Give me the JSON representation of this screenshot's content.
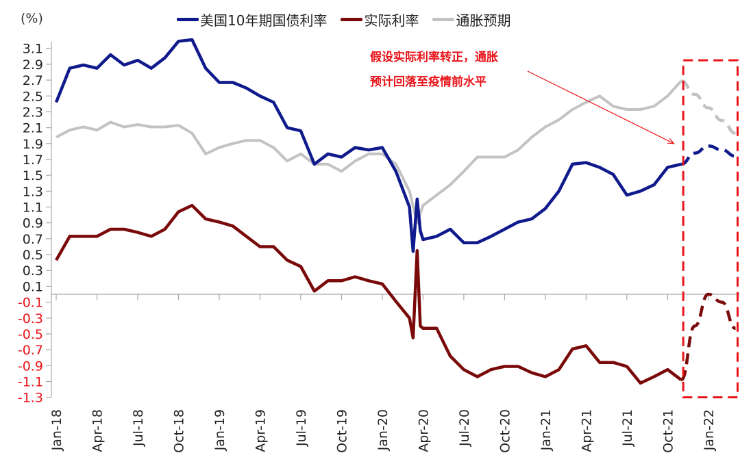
{
  "chart_data": {
    "type": "line",
    "title": "",
    "ylabel": "(%)",
    "xlabel": "",
    "ylim": [
      -1.3,
      3.1
    ],
    "ytick_step": 0.2,
    "xlim": [
      "2018-01",
      "2022-03"
    ],
    "x_tick_labels": [
      "Jan-18",
      "Apr-18",
      "Jul-18",
      "Oct-18",
      "Jan-19",
      "Apr-19",
      "Jul-19",
      "Oct-19",
      "Jan-20",
      "Apr-20",
      "Jul-20",
      "Oct-20",
      "Jan-21",
      "Apr-21",
      "Jul-21",
      "Oct-21",
      "Jan-22"
    ],
    "grid": false,
    "legend": "top",
    "negative_tick_color": "#e8141a",
    "series": [
      {
        "name": "美国10年期国债利率",
        "color": "#0f1a8c",
        "dates": [
          "2018-01-01",
          "2018-02-01",
          "2018-03-01",
          "2018-04-01",
          "2018-05-01",
          "2018-06-01",
          "2018-07-01",
          "2018-08-01",
          "2018-09-01",
          "2018-10-01",
          "2018-11-01",
          "2018-12-01",
          "2019-01-01",
          "2019-02-01",
          "2019-03-01",
          "2019-04-01",
          "2019-05-01",
          "2019-06-01",
          "2019-07-01",
          "2019-08-01",
          "2019-09-01",
          "2019-10-01",
          "2019-11-01",
          "2019-12-01",
          "2020-01-01",
          "2020-02-01",
          "2020-03-01",
          "2020-03-09",
          "2020-03-18",
          "2020-03-25",
          "2020-04-01",
          "2020-05-01",
          "2020-06-01",
          "2020-07-01",
          "2020-08-01",
          "2020-09-01",
          "2020-10-01",
          "2020-11-01",
          "2020-12-01",
          "2021-01-01",
          "2021-02-01",
          "2021-03-01",
          "2021-04-01",
          "2021-05-01",
          "2021-06-01",
          "2021-07-01",
          "2021-08-01",
          "2021-09-01",
          "2021-10-01",
          "2021-11-01"
        ],
        "values": [
          2.42,
          2.85,
          2.89,
          2.85,
          3.02,
          2.89,
          2.95,
          2.85,
          2.98,
          3.19,
          3.21,
          2.85,
          2.67,
          2.67,
          2.6,
          2.5,
          2.42,
          2.1,
          2.06,
          1.64,
          1.77,
          1.73,
          1.85,
          1.82,
          1.85,
          1.55,
          1.1,
          0.54,
          1.2,
          0.8,
          0.69,
          0.73,
          0.82,
          0.65,
          0.65,
          0.73,
          0.82,
          0.91,
          0.95,
          1.08,
          1.3,
          1.64,
          1.66,
          1.6,
          1.51,
          1.25,
          1.3,
          1.38,
          1.6,
          1.64
        ],
        "forecast_dates": [
          "2021-11-01",
          "2021-12-01",
          "2022-01-01",
          "2022-02-01",
          "2022-03-01"
        ],
        "forecast_values": [
          1.64,
          1.78,
          1.87,
          1.82,
          1.74
        ]
      },
      {
        "name": "实际利率",
        "color": "#7a0a0a",
        "dates": [
          "2018-01-01",
          "2018-02-01",
          "2018-03-01",
          "2018-04-01",
          "2018-05-01",
          "2018-06-01",
          "2018-07-01",
          "2018-08-01",
          "2018-09-01",
          "2018-10-01",
          "2018-11-01",
          "2018-12-01",
          "2019-01-01",
          "2019-02-01",
          "2019-03-01",
          "2019-04-01",
          "2019-05-01",
          "2019-06-01",
          "2019-07-01",
          "2019-08-01",
          "2019-09-01",
          "2019-10-01",
          "2019-11-01",
          "2019-12-01",
          "2020-01-01",
          "2020-02-01",
          "2020-03-01",
          "2020-03-09",
          "2020-03-18",
          "2020-03-25",
          "2020-04-01",
          "2020-05-01",
          "2020-06-01",
          "2020-07-01",
          "2020-08-01",
          "2020-09-01",
          "2020-10-01",
          "2020-11-01",
          "2020-12-01",
          "2021-01-01",
          "2021-02-01",
          "2021-03-01",
          "2021-04-01",
          "2021-05-01",
          "2021-06-01",
          "2021-07-01",
          "2021-08-01",
          "2021-09-01",
          "2021-10-01",
          "2021-11-01"
        ],
        "values": [
          0.43,
          0.73,
          0.73,
          0.73,
          0.82,
          0.82,
          0.78,
          0.73,
          0.82,
          1.04,
          1.12,
          0.95,
          0.91,
          0.86,
          0.73,
          0.6,
          0.6,
          0.43,
          0.35,
          0.04,
          0.17,
          0.17,
          0.22,
          0.17,
          0.13,
          -0.09,
          -0.3,
          -0.55,
          0.55,
          -0.4,
          -0.43,
          -0.43,
          -0.78,
          -0.95,
          -1.04,
          -0.95,
          -0.91,
          -0.91,
          -0.99,
          -1.04,
          -0.95,
          -0.69,
          -0.65,
          -0.86,
          -0.86,
          -0.91,
          -1.12,
          -1.04,
          -0.95,
          -1.08
        ],
        "forecast_dates": [
          "2021-11-01",
          "2021-12-01",
          "2022-01-01",
          "2022-02-01",
          "2022-03-01"
        ],
        "forecast_values": [
          -1.08,
          -0.4,
          0.0,
          -0.1,
          -0.43
        ]
      },
      {
        "name": "通胀预期",
        "color": "#c3c3c3",
        "dates": [
          "2018-01-01",
          "2018-02-01",
          "2018-03-01",
          "2018-04-01",
          "2018-05-01",
          "2018-06-01",
          "2018-07-01",
          "2018-08-01",
          "2018-09-01",
          "2018-10-01",
          "2018-11-01",
          "2018-12-01",
          "2019-01-01",
          "2019-02-01",
          "2019-03-01",
          "2019-04-01",
          "2019-05-01",
          "2019-06-01",
          "2019-07-01",
          "2019-08-01",
          "2019-09-01",
          "2019-10-01",
          "2019-11-01",
          "2019-12-01",
          "2020-01-01",
          "2020-02-01",
          "2020-03-01",
          "2020-03-18",
          "2020-04-01",
          "2020-05-01",
          "2020-06-01",
          "2020-07-01",
          "2020-08-01",
          "2020-09-01",
          "2020-10-01",
          "2020-11-01",
          "2020-12-01",
          "2021-01-01",
          "2021-02-01",
          "2021-03-01",
          "2021-04-01",
          "2021-05-01",
          "2021-06-01",
          "2021-07-01",
          "2021-08-01",
          "2021-09-01",
          "2021-10-01",
          "2021-11-01"
        ],
        "values": [
          1.98,
          2.07,
          2.11,
          2.07,
          2.17,
          2.11,
          2.14,
          2.11,
          2.11,
          2.13,
          2.03,
          1.77,
          1.85,
          1.9,
          1.94,
          1.94,
          1.85,
          1.68,
          1.77,
          1.64,
          1.64,
          1.55,
          1.68,
          1.77,
          1.77,
          1.64,
          1.3,
          0.9,
          1.12,
          1.25,
          1.38,
          1.55,
          1.73,
          1.73,
          1.73,
          1.82,
          1.98,
          2.11,
          2.2,
          2.33,
          2.42,
          2.5,
          2.37,
          2.33,
          2.33,
          2.37,
          2.5,
          2.69
        ],
        "forecast_dates": [
          "2021-11-01",
          "2021-12-01",
          "2022-01-01",
          "2022-02-01",
          "2022-03-01"
        ],
        "forecast_values": [
          2.69,
          2.52,
          2.35,
          2.19,
          2.03
        ]
      }
    ],
    "forecast_box": {
      "from": "2021-11-01",
      "to": "2022-03-01",
      "y_top": 2.95,
      "y_bottom": -1.3,
      "color": "#e8141a"
    },
    "annotation": {
      "lines": [
        "假设实际利率转正，通胀",
        "预计回落至疫情前水平"
      ],
      "color": "#e8141a",
      "arrow_to": {
        "date": "2021-10-15",
        "value": 1.9
      }
    }
  }
}
